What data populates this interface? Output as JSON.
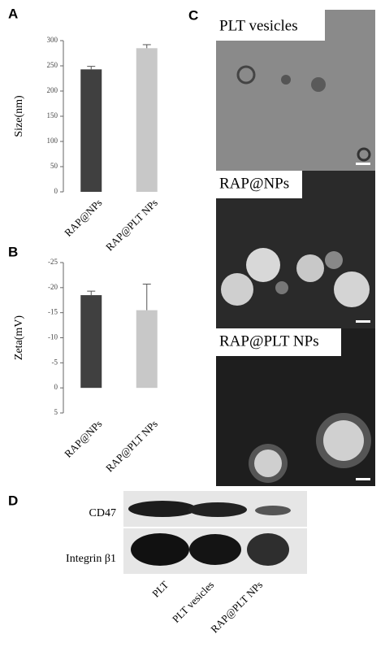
{
  "chart_data": [
    {
      "type": "bar",
      "label": "A",
      "ylabel": "Size(nm)",
      "categories": [
        "RAP@NPs",
        "RAP@PLT NPs"
      ],
      "values": [
        243,
        285
      ],
      "errors": [
        6,
        7
      ],
      "colors": [
        "#404040",
        "#c8c8c8"
      ],
      "ylim": [
        0,
        300
      ],
      "yticks": [
        0,
        50,
        100,
        150,
        200,
        250,
        300
      ]
    },
    {
      "type": "bar",
      "label": "B",
      "ylabel": "Zeta(mV)",
      "categories": [
        "RAP@NPs",
        "RAP@PLT NPs"
      ],
      "values": [
        -18.5,
        -15.5
      ],
      "errors": [
        0.8,
        5.2
      ],
      "colors": [
        "#404040",
        "#c8c8c8"
      ],
      "ylim": [
        5,
        -25
      ],
      "yticks": [
        5,
        0,
        -5,
        -10,
        -15,
        -20,
        -25
      ]
    }
  ],
  "panel_c": {
    "label": "C",
    "images": [
      {
        "label": "PLT vesicles"
      },
      {
        "label": "RAP@NPs"
      },
      {
        "label": "RAP@PLT NPs"
      }
    ]
  },
  "panel_d": {
    "label": "D",
    "rows": [
      "CD47",
      "Integrin β1"
    ],
    "lanes": [
      "PLT",
      "PLT vesicles",
      "RAP@PLT NPs"
    ]
  }
}
